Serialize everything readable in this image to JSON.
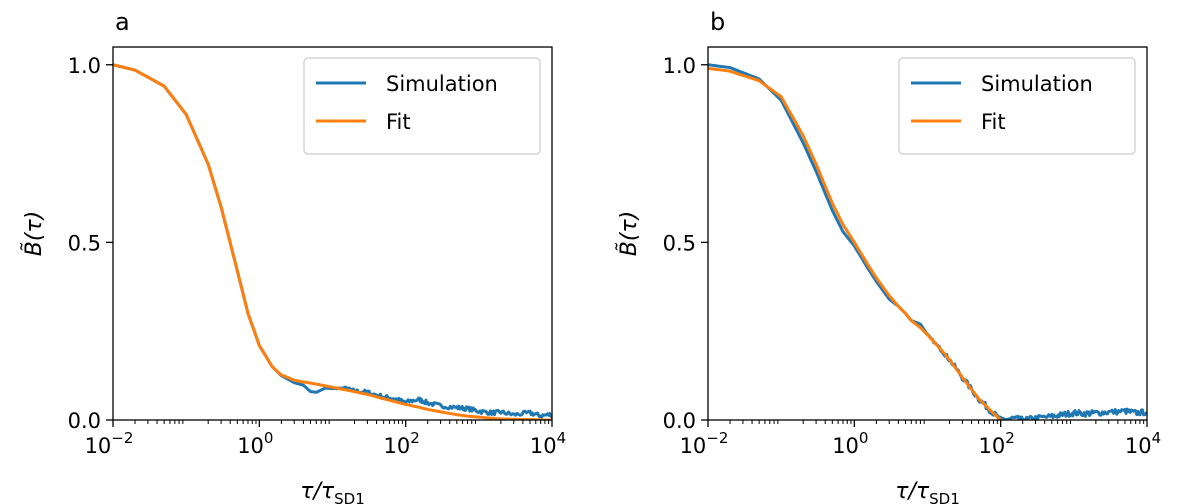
{
  "chart_data": [
    {
      "type": "line",
      "panel_label": "a",
      "xlabel_main": "τ/τ",
      "xlabel_sub": "SD1",
      "ylabel": "B̃(τ)",
      "x_scale": "log",
      "xlim": [
        0.01,
        10000
      ],
      "ylim": [
        0.0,
        1.05
      ],
      "x_ticks": [
        {
          "value": 0.01,
          "base": "10",
          "exp": "−2"
        },
        {
          "value": 1,
          "base": "10",
          "exp": "0"
        },
        {
          "value": 100,
          "base": "10",
          "exp": "2"
        },
        {
          "value": 10000,
          "base": "10",
          "exp": "4"
        }
      ],
      "y_ticks": [
        {
          "value": 0.0,
          "label": "0.0"
        },
        {
          "value": 0.5,
          "label": "0.5"
        },
        {
          "value": 1.0,
          "label": "1.0"
        }
      ],
      "legend_position": "top-right",
      "series": [
        {
          "name": "Simulation",
          "color": "#1f77b4",
          "x": [
            0.01,
            0.02,
            0.05,
            0.1,
            0.2,
            0.3,
            0.5,
            0.7,
            1,
            1.5,
            2,
            3,
            4,
            5,
            6,
            8,
            10,
            15,
            20,
            30,
            50,
            70,
            100,
            150,
            200,
            300,
            500,
            700,
            1000,
            1500,
            2000,
            3000,
            5000,
            7000,
            10000
          ],
          "y": [
            1.0,
            0.985,
            0.94,
            0.86,
            0.72,
            0.6,
            0.42,
            0.3,
            0.21,
            0.15,
            0.125,
            0.105,
            0.098,
            0.08,
            0.078,
            0.09,
            0.088,
            0.09,
            0.082,
            0.078,
            0.065,
            0.06,
            0.05,
            0.058,
            0.048,
            0.04,
            0.035,
            0.032,
            0.025,
            0.02,
            0.022,
            0.015,
            0.02,
            0.012,
            0.016
          ],
          "noise": 0.006
        },
        {
          "name": "Fit",
          "color": "#ff7f0e",
          "x": [
            0.01,
            0.02,
            0.05,
            0.1,
            0.2,
            0.3,
            0.5,
            0.7,
            1,
            1.5,
            2,
            3,
            4,
            5,
            6,
            8,
            10,
            15,
            20,
            30,
            50,
            70,
            100,
            150,
            200,
            300,
            500,
            700,
            1000,
            1500,
            2000,
            3000,
            5000,
            7000,
            10000
          ],
          "y": [
            1.0,
            0.985,
            0.94,
            0.86,
            0.72,
            0.6,
            0.42,
            0.3,
            0.21,
            0.15,
            0.127,
            0.112,
            0.107,
            0.104,
            0.101,
            0.096,
            0.092,
            0.085,
            0.08,
            0.072,
            0.06,
            0.052,
            0.044,
            0.036,
            0.03,
            0.023,
            0.015,
            0.011,
            0.008,
            0.005,
            0.003,
            0.002,
            0.001,
            0.0,
            0.0
          ]
        }
      ]
    },
    {
      "type": "line",
      "panel_label": "b",
      "xlabel_main": "τ/τ",
      "xlabel_sub": "SD1",
      "ylabel": "B̃(τ)",
      "x_scale": "log",
      "xlim": [
        0.01,
        10000
      ],
      "ylim": [
        0.0,
        1.05
      ],
      "x_ticks": [
        {
          "value": 0.01,
          "base": "10",
          "exp": "−2"
        },
        {
          "value": 1,
          "base": "10",
          "exp": "0"
        },
        {
          "value": 100,
          "base": "10",
          "exp": "2"
        },
        {
          "value": 10000,
          "base": "10",
          "exp": "4"
        }
      ],
      "y_ticks": [
        {
          "value": 0.0,
          "label": "0.0"
        },
        {
          "value": 0.5,
          "label": "0.5"
        },
        {
          "value": 1.0,
          "label": "1.0"
        }
      ],
      "legend_position": "top-right",
      "series": [
        {
          "name": "Simulation",
          "color": "#1f77b4",
          "x": [
            0.01,
            0.02,
            0.05,
            0.1,
            0.2,
            0.3,
            0.5,
            0.7,
            1,
            1.5,
            2,
            3,
            4,
            5,
            6,
            8,
            10,
            15,
            20,
            30,
            50,
            70,
            100,
            150,
            200,
            300,
            500,
            700,
            1000,
            1500,
            2000,
            3000,
            5000,
            7000,
            10000
          ],
          "y": [
            1.0,
            0.992,
            0.96,
            0.9,
            0.78,
            0.7,
            0.59,
            0.53,
            0.49,
            0.43,
            0.39,
            0.34,
            0.32,
            0.3,
            0.28,
            0.27,
            0.24,
            0.2,
            0.17,
            0.12,
            0.06,
            0.03,
            0.0,
            0.005,
            0.0,
            0.005,
            0.01,
            0.015,
            0.02,
            0.018,
            0.02,
            0.022,
            0.025,
            0.02,
            0.022
          ],
          "noise": 0.008
        },
        {
          "name": "Fit",
          "color": "#ff7f0e",
          "x": [
            0.01,
            0.02,
            0.05,
            0.1,
            0.2,
            0.3,
            0.5,
            0.7,
            1,
            1.5,
            2,
            3,
            4,
            5,
            6,
            8,
            10,
            15,
            20,
            30,
            50,
            70,
            100
          ],
          "y": [
            0.99,
            0.982,
            0.955,
            0.91,
            0.8,
            0.72,
            0.61,
            0.55,
            0.5,
            0.44,
            0.4,
            0.35,
            0.32,
            0.3,
            0.28,
            0.26,
            0.24,
            0.2,
            0.17,
            0.12,
            0.06,
            0.03,
            0.0
          ]
        }
      ]
    }
  ]
}
